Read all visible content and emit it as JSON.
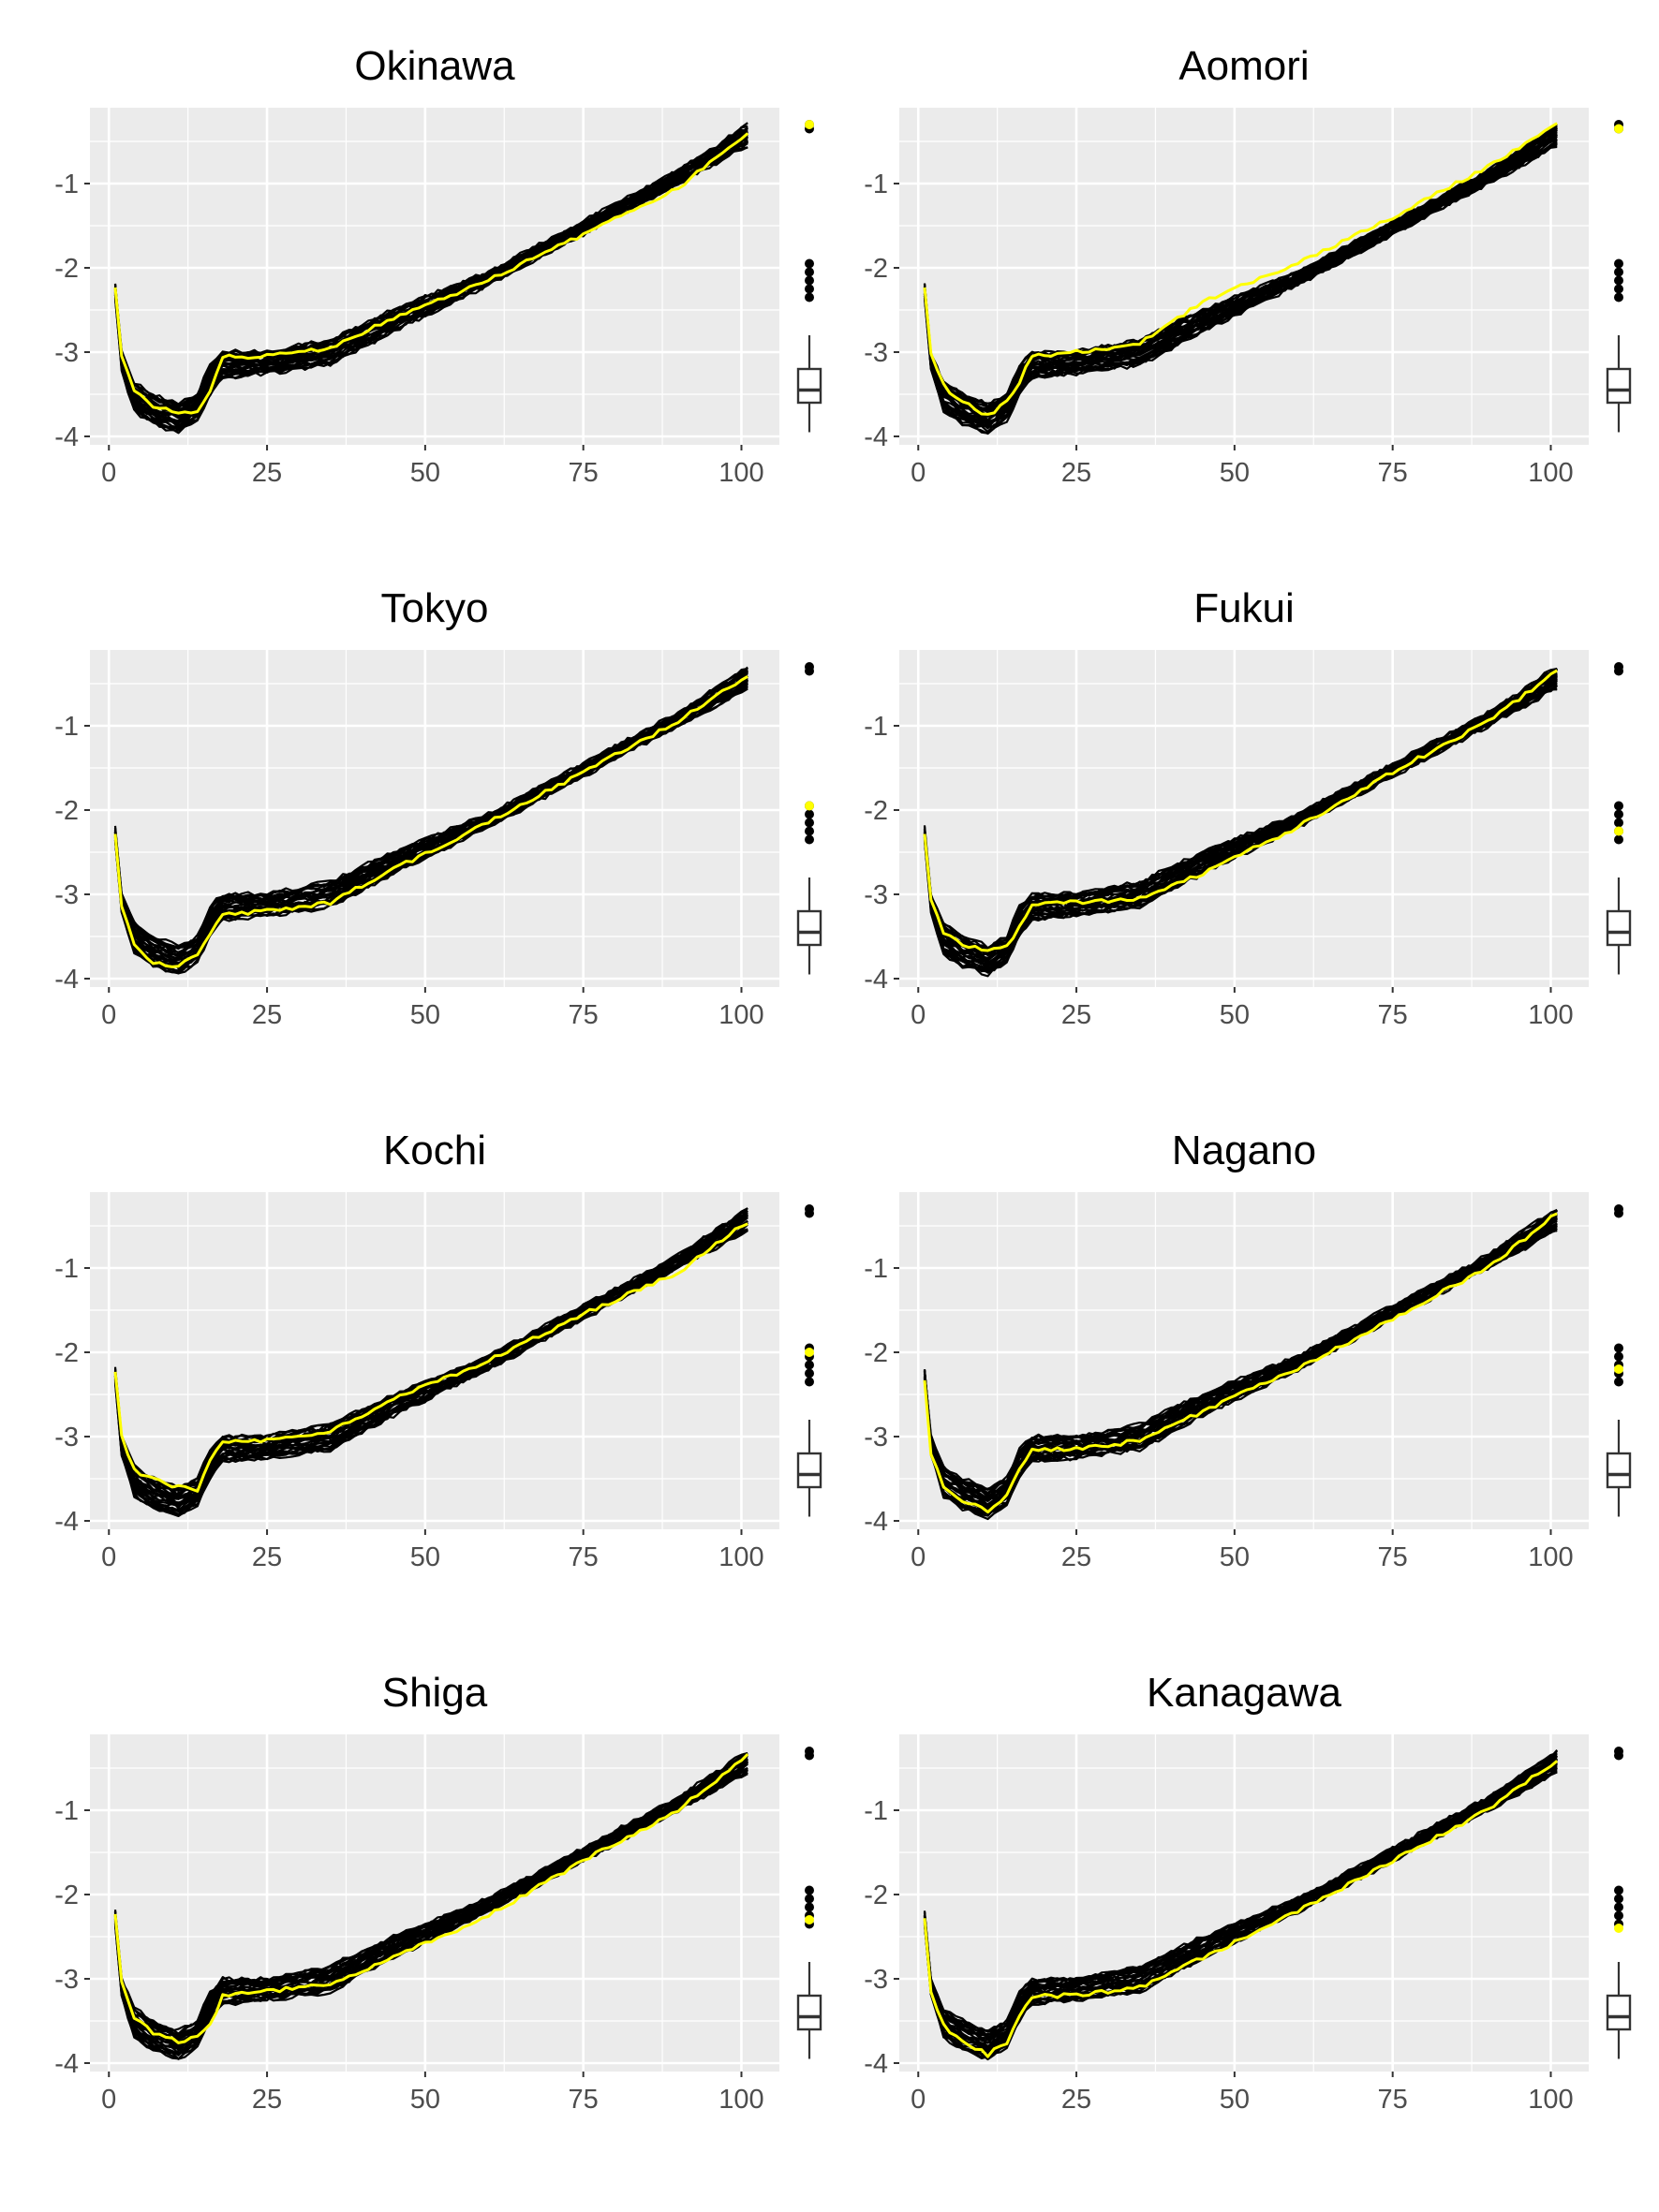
{
  "chart_data": [
    {
      "type": "line",
      "title": "Okinawa",
      "highlight_color": "#ffff00",
      "x_range": [
        1,
        101
      ],
      "xlim": [
        -3,
        106
      ],
      "ylim": [
        -4.1,
        -0.1
      ],
      "x_ticks": [
        0,
        25,
        50,
        75,
        100
      ],
      "x_tick_labels": [
        "0",
        "25",
        "50",
        "75",
        "100"
      ],
      "y_ticks": [
        -4,
        -3,
        -2,
        -1
      ],
      "y_tick_labels": [
        "-4",
        "-3",
        "-2",
        "-1"
      ],
      "band": {
        "anchors_x": [
          1,
          2,
          4,
          7,
          11,
          14,
          16,
          18,
          25,
          35,
          45,
          60,
          75,
          90,
          101
        ],
        "lower": [
          -2.35,
          -3.2,
          -3.7,
          -3.85,
          -3.95,
          -3.8,
          -3.5,
          -3.3,
          -3.25,
          -3.15,
          -2.75,
          -2.2,
          -1.6,
          -1.0,
          -0.55
        ],
        "upper": [
          -2.2,
          -3.0,
          -3.35,
          -3.5,
          -3.62,
          -3.5,
          -3.15,
          -3.0,
          -3.0,
          -2.85,
          -2.5,
          -2.05,
          -1.45,
          -0.85,
          -0.3
        ]
      },
      "highlight_series": {
        "name": "Okinawa",
        "anchors_x": [
          1,
          2,
          4,
          7,
          11,
          14,
          16,
          18,
          25,
          35,
          45,
          60,
          75,
          90,
          101
        ],
        "y": [
          -2.25,
          -3.05,
          -3.45,
          -3.65,
          -3.7,
          -3.72,
          -3.45,
          -3.05,
          -3.05,
          -2.95,
          -2.6,
          -2.15,
          -1.6,
          -1.05,
          -0.4
        ]
      },
      "boxplot": {
        "q1": -3.6,
        "median": -3.45,
        "q3": -3.2,
        "whisker_low": -3.95,
        "whisker_high": -2.8,
        "outliers": [
          -2.35,
          -2.25,
          -2.15,
          -2.05,
          -1.95,
          -0.35,
          -0.3
        ],
        "highlight_value": -0.3
      }
    },
    {
      "type": "line",
      "title": "Aomori",
      "highlight_color": "#ffff00",
      "x_range": [
        1,
        101
      ],
      "xlim": [
        -3,
        106
      ],
      "ylim": [
        -4.1,
        -0.1
      ],
      "x_ticks": [
        0,
        25,
        50,
        75,
        100
      ],
      "x_tick_labels": [
        "0",
        "25",
        "50",
        "75",
        "100"
      ],
      "y_ticks": [
        -4,
        -3,
        -2,
        -1
      ],
      "y_tick_labels": [
        "-4",
        "-3",
        "-2",
        "-1"
      ],
      "band": {
        "anchors_x": [
          1,
          2,
          4,
          7,
          11,
          14,
          16,
          18,
          25,
          35,
          45,
          60,
          75,
          90,
          101
        ],
        "lower": [
          -2.35,
          -3.2,
          -3.7,
          -3.85,
          -3.95,
          -3.8,
          -3.5,
          -3.3,
          -3.25,
          -3.15,
          -2.75,
          -2.2,
          -1.6,
          -1.0,
          -0.55
        ],
        "upper": [
          -2.2,
          -3.0,
          -3.35,
          -3.5,
          -3.62,
          -3.5,
          -3.15,
          -3.0,
          -3.0,
          -2.85,
          -2.5,
          -2.05,
          -1.45,
          -0.85,
          -0.3
        ]
      },
      "highlight_series": {
        "name": "Aomori",
        "anchors_x": [
          1,
          2,
          4,
          7,
          11,
          14,
          16,
          18,
          25,
          35,
          45,
          60,
          75,
          90,
          101
        ],
        "y": [
          -2.25,
          -3.0,
          -3.4,
          -3.6,
          -3.75,
          -3.6,
          -3.35,
          -3.05,
          -3.0,
          -2.9,
          -2.4,
          -1.95,
          -1.4,
          -0.8,
          -0.3
        ]
      },
      "boxplot": {
        "q1": -3.6,
        "median": -3.45,
        "q3": -3.2,
        "whisker_low": -3.95,
        "whisker_high": -2.8,
        "outliers": [
          -2.35,
          -2.25,
          -2.15,
          -2.05,
          -1.95,
          -0.35,
          -0.3
        ],
        "highlight_value": -0.35
      }
    },
    {
      "type": "line",
      "title": "Tokyo",
      "highlight_color": "#ffff00",
      "x_range": [
        1,
        101
      ],
      "xlim": [
        -3,
        106
      ],
      "ylim": [
        -4.1,
        -0.1
      ],
      "x_ticks": [
        0,
        25,
        50,
        75,
        100
      ],
      "x_tick_labels": [
        "0",
        "25",
        "50",
        "75",
        "100"
      ],
      "y_ticks": [
        -4,
        -3,
        -2,
        -1
      ],
      "y_tick_labels": [
        "-4",
        "-3",
        "-2",
        "-1"
      ],
      "band": {
        "anchors_x": [
          1,
          2,
          4,
          7,
          11,
          14,
          16,
          18,
          25,
          35,
          45,
          60,
          75,
          90,
          101
        ],
        "lower": [
          -2.35,
          -3.2,
          -3.7,
          -3.85,
          -3.95,
          -3.8,
          -3.5,
          -3.3,
          -3.25,
          -3.15,
          -2.75,
          -2.2,
          -1.6,
          -1.0,
          -0.55
        ],
        "upper": [
          -2.2,
          -3.0,
          -3.35,
          -3.5,
          -3.62,
          -3.5,
          -3.15,
          -3.0,
          -3.0,
          -2.85,
          -2.5,
          -2.05,
          -1.45,
          -0.85,
          -0.3
        ]
      },
      "highlight_series": {
        "name": "Tokyo",
        "anchors_x": [
          1,
          2,
          4,
          7,
          11,
          14,
          16,
          18,
          25,
          35,
          45,
          60,
          75,
          90,
          101
        ],
        "y": [
          -2.3,
          -3.15,
          -3.6,
          -3.8,
          -3.85,
          -3.7,
          -3.45,
          -3.25,
          -3.2,
          -3.1,
          -2.7,
          -2.15,
          -1.55,
          -0.95,
          -0.4
        ]
      },
      "boxplot": {
        "q1": -3.6,
        "median": -3.45,
        "q3": -3.2,
        "whisker_low": -3.95,
        "whisker_high": -2.8,
        "outliers": [
          -2.35,
          -2.25,
          -2.15,
          -2.05,
          -1.95,
          -0.35,
          -0.3
        ],
        "highlight_value": -1.95
      }
    },
    {
      "type": "line",
      "title": "Fukui",
      "highlight_color": "#ffff00",
      "x_range": [
        1,
        101
      ],
      "xlim": [
        -3,
        106
      ],
      "ylim": [
        -4.1,
        -0.1
      ],
      "x_ticks": [
        0,
        25,
        50,
        75,
        100
      ],
      "x_tick_labels": [
        "0",
        "25",
        "50",
        "75",
        "100"
      ],
      "y_ticks": [
        -4,
        -3,
        -2,
        -1
      ],
      "y_tick_labels": [
        "-4",
        "-3",
        "-2",
        "-1"
      ],
      "band": {
        "anchors_x": [
          1,
          2,
          4,
          7,
          11,
          14,
          16,
          18,
          25,
          35,
          45,
          60,
          75,
          90,
          101
        ],
        "lower": [
          -2.35,
          -3.2,
          -3.7,
          -3.85,
          -3.95,
          -3.8,
          -3.5,
          -3.3,
          -3.25,
          -3.15,
          -2.75,
          -2.2,
          -1.6,
          -1.0,
          -0.55
        ],
        "upper": [
          -2.2,
          -3.0,
          -3.35,
          -3.5,
          -3.62,
          -3.5,
          -3.15,
          -3.0,
          -3.0,
          -2.85,
          -2.5,
          -2.05,
          -1.45,
          -0.85,
          -0.3
        ]
      },
      "highlight_series": {
        "name": "Fukui",
        "anchors_x": [
          1,
          2,
          4,
          7,
          11,
          14,
          16,
          18,
          25,
          35,
          45,
          60,
          75,
          90,
          101
        ],
        "y": [
          -2.3,
          -3.05,
          -3.45,
          -3.6,
          -3.65,
          -3.6,
          -3.4,
          -3.1,
          -3.1,
          -3.05,
          -2.75,
          -2.2,
          -1.55,
          -0.95,
          -0.35
        ]
      },
      "boxplot": {
        "q1": -3.6,
        "median": -3.45,
        "q3": -3.2,
        "whisker_low": -3.95,
        "whisker_high": -2.8,
        "outliers": [
          -2.35,
          -2.25,
          -2.15,
          -2.05,
          -1.95,
          -0.35,
          -0.3
        ],
        "highlight_value": -2.25
      }
    },
    {
      "type": "line",
      "title": "Kochi",
      "highlight_color": "#ffff00",
      "x_range": [
        1,
        101
      ],
      "xlim": [
        -3,
        106
      ],
      "ylim": [
        -4.1,
        -0.1
      ],
      "x_ticks": [
        0,
        25,
        50,
        75,
        100
      ],
      "x_tick_labels": [
        "0",
        "25",
        "50",
        "75",
        "100"
      ],
      "y_ticks": [
        -4,
        -3,
        -2,
        -1
      ],
      "y_tick_labels": [
        "-4",
        "-3",
        "-2",
        "-1"
      ],
      "band": {
        "anchors_x": [
          1,
          2,
          4,
          7,
          11,
          14,
          16,
          18,
          25,
          35,
          45,
          60,
          75,
          90,
          101
        ],
        "lower": [
          -2.35,
          -3.2,
          -3.7,
          -3.85,
          -3.95,
          -3.8,
          -3.5,
          -3.3,
          -3.25,
          -3.15,
          -2.75,
          -2.2,
          -1.6,
          -1.0,
          -0.55
        ],
        "upper": [
          -2.2,
          -3.0,
          -3.35,
          -3.5,
          -3.62,
          -3.5,
          -3.15,
          -3.0,
          -3.0,
          -2.85,
          -2.5,
          -2.05,
          -1.45,
          -0.85,
          -0.3
        ]
      },
      "highlight_series": {
        "name": "Kochi",
        "anchors_x": [
          1,
          2,
          4,
          7,
          11,
          14,
          16,
          18,
          25,
          35,
          45,
          60,
          75,
          90,
          101
        ],
        "y": [
          -2.25,
          -3.0,
          -3.4,
          -3.5,
          -3.6,
          -3.65,
          -3.3,
          -3.05,
          -3.05,
          -2.95,
          -2.55,
          -2.1,
          -1.55,
          -1.05,
          -0.45
        ]
      },
      "boxplot": {
        "q1": -3.6,
        "median": -3.45,
        "q3": -3.2,
        "whisker_low": -3.95,
        "whisker_high": -2.8,
        "outliers": [
          -2.35,
          -2.25,
          -2.15,
          -2.05,
          -1.95,
          -0.35,
          -0.3
        ],
        "highlight_value": -2.0
      }
    },
    {
      "type": "line",
      "title": "Nagano",
      "highlight_color": "#ffff00",
      "x_range": [
        1,
        101
      ],
      "xlim": [
        -3,
        106
      ],
      "ylim": [
        -4.1,
        -0.1
      ],
      "x_ticks": [
        0,
        25,
        50,
        75,
        100
      ],
      "x_tick_labels": [
        "0",
        "25",
        "50",
        "75",
        "100"
      ],
      "y_ticks": [
        -4,
        -3,
        -2,
        -1
      ],
      "y_tick_labels": [
        "-4",
        "-3",
        "-2",
        "-1"
      ],
      "band": {
        "anchors_x": [
          1,
          2,
          4,
          7,
          11,
          14,
          16,
          18,
          25,
          35,
          45,
          60,
          75,
          90,
          101
        ],
        "lower": [
          -2.35,
          -3.2,
          -3.7,
          -3.85,
          -3.95,
          -3.8,
          -3.5,
          -3.3,
          -3.25,
          -3.15,
          -2.75,
          -2.2,
          -1.6,
          -1.0,
          -0.55
        ],
        "upper": [
          -2.2,
          -3.0,
          -3.35,
          -3.5,
          -3.62,
          -3.5,
          -3.15,
          -3.0,
          -3.0,
          -2.85,
          -2.5,
          -2.05,
          -1.45,
          -0.85,
          -0.3
        ]
      },
      "highlight_series": {
        "name": "Nagano",
        "anchors_x": [
          1,
          2,
          4,
          7,
          11,
          14,
          16,
          18,
          25,
          35,
          45,
          60,
          75,
          90,
          101
        ],
        "y": [
          -2.35,
          -3.2,
          -3.6,
          -3.75,
          -3.9,
          -3.7,
          -3.4,
          -3.15,
          -3.15,
          -3.05,
          -2.7,
          -2.2,
          -1.6,
          -1.0,
          -0.35
        ]
      },
      "boxplot": {
        "q1": -3.6,
        "median": -3.45,
        "q3": -3.2,
        "whisker_low": -3.95,
        "whisker_high": -2.8,
        "outliers": [
          -2.35,
          -2.25,
          -2.15,
          -2.05,
          -1.95,
          -0.35,
          -0.3
        ],
        "highlight_value": -2.2
      }
    },
    {
      "type": "line",
      "title": "Shiga",
      "highlight_color": "#ffff00",
      "x_range": [
        1,
        101
      ],
      "xlim": [
        -3,
        106
      ],
      "ylim": [
        -4.1,
        -0.1
      ],
      "x_ticks": [
        0,
        25,
        50,
        75,
        100
      ],
      "x_tick_labels": [
        "0",
        "25",
        "50",
        "75",
        "100"
      ],
      "y_ticks": [
        -4,
        -3,
        -2,
        -1
      ],
      "y_tick_labels": [
        "-4",
        "-3",
        "-2",
        "-1"
      ],
      "band": {
        "anchors_x": [
          1,
          2,
          4,
          7,
          11,
          14,
          16,
          18,
          25,
          35,
          45,
          60,
          75,
          90,
          101
        ],
        "lower": [
          -2.35,
          -3.2,
          -3.7,
          -3.85,
          -3.95,
          -3.8,
          -3.5,
          -3.3,
          -3.25,
          -3.15,
          -2.75,
          -2.2,
          -1.6,
          -1.0,
          -0.55
        ],
        "upper": [
          -2.2,
          -3.0,
          -3.35,
          -3.5,
          -3.62,
          -3.5,
          -3.15,
          -3.0,
          -3.0,
          -2.85,
          -2.5,
          -2.05,
          -1.45,
          -0.85,
          -0.3
        ]
      },
      "highlight_series": {
        "name": "Shiga",
        "anchors_x": [
          1,
          2,
          4,
          7,
          11,
          14,
          16,
          18,
          25,
          35,
          45,
          60,
          75,
          90,
          101
        ],
        "y": [
          -2.25,
          -3.05,
          -3.45,
          -3.65,
          -3.75,
          -3.7,
          -3.55,
          -3.2,
          -3.15,
          -3.05,
          -2.75,
          -2.25,
          -1.6,
          -1.0,
          -0.35
        ]
      },
      "boxplot": {
        "q1": -3.6,
        "median": -3.45,
        "q3": -3.2,
        "whisker_low": -3.95,
        "whisker_high": -2.8,
        "outliers": [
          -2.35,
          -2.25,
          -2.15,
          -2.05,
          -1.95,
          -0.35,
          -0.3
        ],
        "highlight_value": -2.3
      }
    },
    {
      "type": "line",
      "title": "Kanagawa",
      "highlight_color": "#ffff00",
      "x_range": [
        1,
        101
      ],
      "xlim": [
        -3,
        106
      ],
      "ylim": [
        -4.1,
        -0.1
      ],
      "x_ticks": [
        0,
        25,
        50,
        75,
        100
      ],
      "x_tick_labels": [
        "0",
        "25",
        "50",
        "75",
        "100"
      ],
      "y_ticks": [
        -4,
        -3,
        -2,
        -1
      ],
      "y_tick_labels": [
        "-4",
        "-3",
        "-2",
        "-1"
      ],
      "band": {
        "anchors_x": [
          1,
          2,
          4,
          7,
          11,
          14,
          16,
          18,
          25,
          35,
          45,
          60,
          75,
          90,
          101
        ],
        "lower": [
          -2.35,
          -3.2,
          -3.7,
          -3.85,
          -3.95,
          -3.8,
          -3.5,
          -3.3,
          -3.25,
          -3.15,
          -2.75,
          -2.2,
          -1.6,
          -1.0,
          -0.55
        ],
        "upper": [
          -2.2,
          -3.0,
          -3.35,
          -3.5,
          -3.62,
          -3.5,
          -3.15,
          -3.0,
          -3.0,
          -2.85,
          -2.5,
          -2.05,
          -1.45,
          -0.85,
          -0.3
        ]
      },
      "highlight_series": {
        "name": "Kanagawa",
        "anchors_x": [
          1,
          2,
          4,
          7,
          11,
          14,
          16,
          18,
          25,
          35,
          45,
          60,
          75,
          90,
          101
        ],
        "y": [
          -2.3,
          -3.15,
          -3.55,
          -3.75,
          -3.9,
          -3.75,
          -3.45,
          -3.2,
          -3.2,
          -3.1,
          -2.75,
          -2.2,
          -1.6,
          -1.0,
          -0.4
        ]
      },
      "boxplot": {
        "q1": -3.6,
        "median": -3.45,
        "q3": -3.2,
        "whisker_low": -3.95,
        "whisker_high": -2.8,
        "outliers": [
          -2.35,
          -2.25,
          -2.15,
          -2.05,
          -1.95,
          -0.35,
          -0.3
        ],
        "highlight_value": -2.4
      }
    }
  ]
}
